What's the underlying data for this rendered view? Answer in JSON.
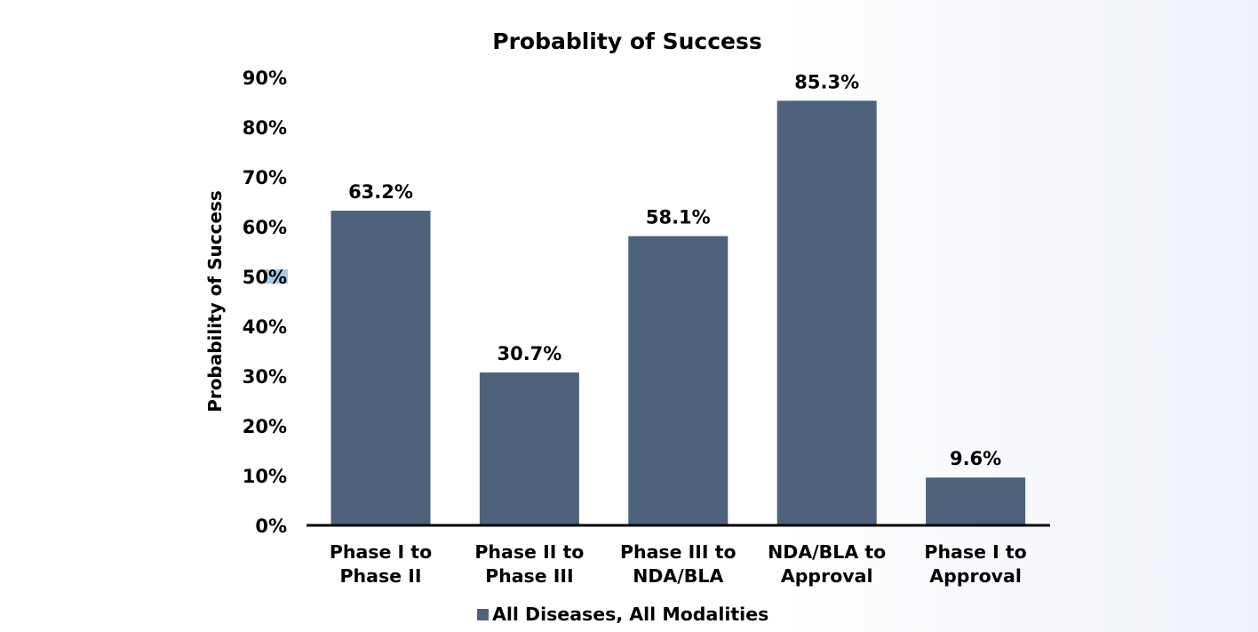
{
  "chart_data": {
    "type": "bar",
    "title": "Probablity of Success",
    "xlabel": "",
    "ylabel": "Probability of Success",
    "ylim": [
      0,
      90
    ],
    "yticks": [
      0,
      10,
      20,
      30,
      40,
      50,
      60,
      70,
      80,
      90
    ],
    "ytick_labels": [
      "0%",
      "10%",
      "20%",
      "30%",
      "40%",
      "50%",
      "60%",
      "70%",
      "80%",
      "90%"
    ],
    "categories": [
      [
        "Phase I to",
        "Phase II"
      ],
      [
        "Phase II to",
        "Phase III"
      ],
      [
        "Phase III to",
        "NDA/BLA"
      ],
      [
        "NDA/BLA to",
        "Approval"
      ],
      [
        "Phase I to",
        "Approval"
      ]
    ],
    "series": [
      {
        "name": "All Diseases, All Modalities",
        "values": [
          63.2,
          30.7,
          58.1,
          85.3,
          9.6
        ],
        "labels": [
          "63.2%",
          "30.7%",
          "58.1%",
          "85.3%",
          "9.6%"
        ],
        "color": "#4e627c"
      }
    ],
    "grid": false,
    "legend": "bottom",
    "highlight_color": "#a9cce3"
  }
}
